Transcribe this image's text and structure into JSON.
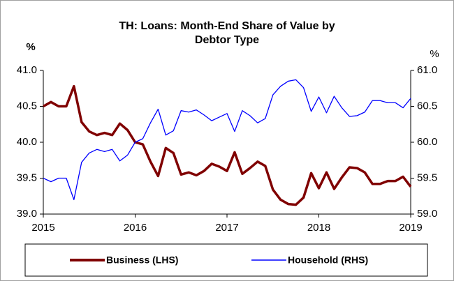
{
  "chart_data": {
    "type": "line",
    "title": [
      "TH: Loans: Month-End Share of Value by",
      "Debtor Type"
    ],
    "y_label": "%",
    "y2_label": "%",
    "categories": [
      "2015",
      null,
      null,
      null,
      null,
      null,
      null,
      null,
      null,
      null,
      null,
      null,
      "2016",
      null,
      null,
      null,
      null,
      null,
      null,
      null,
      null,
      null,
      null,
      null,
      "2017",
      null,
      null,
      null,
      null,
      null,
      null,
      null,
      null,
      null,
      null,
      null,
      "2018",
      null,
      null,
      null,
      null,
      null,
      null,
      null,
      null,
      null,
      null,
      null,
      "2019"
    ],
    "series": [
      {
        "name": "Business (LHS)",
        "color": "#800000",
        "axis": "y",
        "values": [
          40.5,
          40.56,
          40.5,
          40.5,
          40.78,
          40.28,
          40.15,
          40.1,
          40.13,
          40.1,
          40.26,
          40.17,
          40.0,
          39.97,
          39.73,
          39.53,
          39.92,
          39.85,
          39.55,
          39.58,
          39.54,
          39.6,
          39.7,
          39.66,
          39.6,
          39.86,
          39.56,
          39.64,
          39.73,
          39.67,
          39.34,
          39.2,
          39.14,
          39.13,
          39.23,
          39.57,
          39.36,
          39.58,
          39.35,
          39.51,
          39.65,
          39.64,
          39.58,
          39.42,
          39.42,
          39.46,
          39.46,
          39.52,
          39.38
        ]
      },
      {
        "name": "Household (RHS)",
        "color": "#0000ff",
        "axis": "y2",
        "values": [
          59.5,
          59.45,
          59.5,
          59.5,
          59.2,
          59.72,
          59.85,
          59.9,
          59.87,
          59.9,
          59.74,
          59.82,
          60.0,
          60.05,
          60.27,
          60.46,
          60.1,
          60.16,
          60.44,
          60.42,
          60.45,
          60.38,
          60.3,
          60.35,
          60.4,
          60.15,
          60.44,
          60.37,
          60.27,
          60.33,
          60.66,
          60.78,
          60.85,
          60.87,
          60.76,
          60.43,
          60.63,
          60.41,
          60.64,
          60.48,
          60.36,
          60.37,
          60.42,
          60.58,
          60.58,
          60.55,
          60.55,
          60.48,
          60.61
        ]
      }
    ],
    "ylim": [
      39,
      41
    ],
    "yticks": [
      {
        "value": 39,
        "label": "39.0"
      },
      39.5,
      {
        "value": 40,
        "label": "40.0"
      },
      40.5,
      {
        "value": 41,
        "label": "41.0"
      }
    ],
    "y2lim": [
      59,
      61
    ],
    "y2ticks": [
      {
        "value": 59,
        "label": "59.0"
      },
      59.5,
      {
        "value": 60,
        "label": "60.0"
      },
      60.5,
      {
        "value": 61,
        "label": "61.0"
      }
    ],
    "legend": "bottom"
  }
}
